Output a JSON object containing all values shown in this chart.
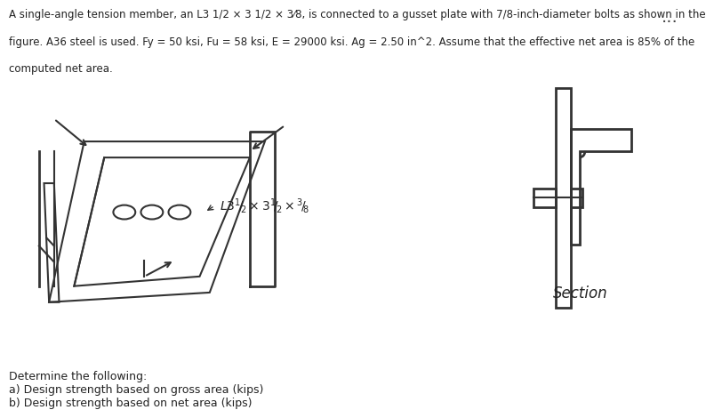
{
  "title_text": "A single-angle tension member, an L3 1/2 × 3 1/2 × 3⁄8, is connected to a gusset plate with 7/8-inch-diameter bolts as shown in the\nfigure. A36 steel is used. Fy = 50 ksi, Fu = 58 ksi, E = 29000 ksi. Ag = 2.50 in^2. Assume that the effective net area is 85% of the\ncomputed net area.",
  "label_angle": "L3¹⁄₂ × 3¹⁄₂ × ³⁄₈",
  "section_label": "Section",
  "determine_text": "Determine the following:\na) Design strength based on gross area (kips)\nb) Design strength based on net area (kips)",
  "bg_color": "#e8f0f7",
  "fig_bg": "#ffffff",
  "line_color": "#333333",
  "dots_color": "..."
}
